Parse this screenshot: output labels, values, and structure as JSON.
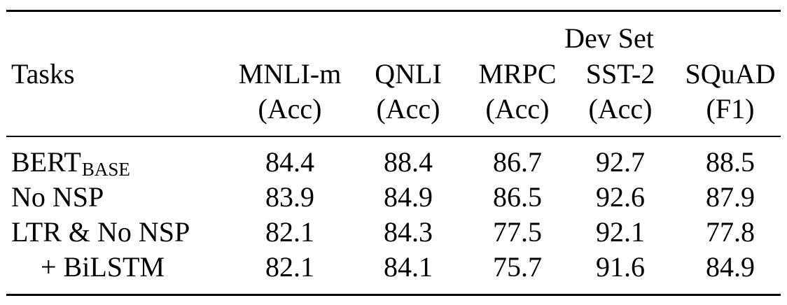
{
  "table": {
    "group_header": "Dev Set",
    "task_header": "Tasks",
    "columns": [
      {
        "name": "MNLI-m",
        "metric": "(Acc)"
      },
      {
        "name": "QNLI",
        "metric": "(Acc)"
      },
      {
        "name": "MRPC",
        "metric": "(Acc)"
      },
      {
        "name": "SST-2",
        "metric": "(Acc)"
      },
      {
        "name": "SQuAD",
        "metric": "(F1)"
      }
    ],
    "rows": [
      {
        "label": "BERT",
        "label_sub": "BASE",
        "values": [
          "84.4",
          "88.4",
          "86.7",
          "92.7",
          "88.5"
        ]
      },
      {
        "label": "No NSP",
        "values": [
          "83.9",
          "84.9",
          "86.5",
          "92.6",
          "87.9"
        ]
      },
      {
        "label": "LTR & No NSP",
        "values": [
          "82.1",
          "84.3",
          "77.5",
          "92.1",
          "77.8"
        ]
      },
      {
        "label": "+ BiLSTM",
        "values": [
          "82.1",
          "84.1",
          "75.7",
          "91.6",
          "84.9"
        ]
      }
    ]
  }
}
